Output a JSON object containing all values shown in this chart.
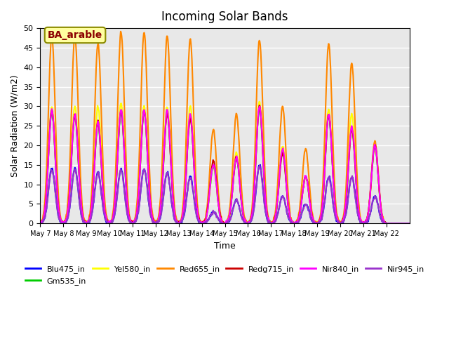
{
  "title": "Incoming Solar Bands",
  "xlabel": "Time",
  "ylabel": "Solar Radiation (W/m2)",
  "annotation_text": "BA_arable",
  "annotation_facecolor": "#FFFFA0",
  "annotation_edgecolor": "#8B8B00",
  "annotation_textcolor": "#8B0000",
  "background_color": "#E8E8E8",
  "ylim": [
    0,
    50
  ],
  "xtick_labels": [
    "May 7",
    "May 8",
    "May 9",
    "May 10",
    "May 11",
    "May 12",
    "May 13",
    "May 14",
    "May 15",
    "May 16",
    "May 17",
    "May 18",
    "May 19",
    "May 20",
    "May 21",
    "May 22"
  ],
  "series": [
    {
      "name": "Blu475_in",
      "color": "#0000FF",
      "lw": 1.5
    },
    {
      "name": "Gm535_in",
      "color": "#00CC00",
      "lw": 1.5
    },
    {
      "name": "Yel580_in",
      "color": "#FFFF00",
      "lw": 1.5
    },
    {
      "name": "Red655_in",
      "color": "#FF8800",
      "lw": 1.5
    },
    {
      "name": "Redg715_in",
      "color": "#CC0000",
      "lw": 1.5
    },
    {
      "name": "Nir840_in",
      "color": "#FF00FF",
      "lw": 1.5
    },
    {
      "name": "Nir945_in",
      "color": "#9933CC",
      "lw": 1.5
    }
  ],
  "peak_vals_orange": [
    48,
    48,
    46,
    49,
    49,
    48,
    47,
    24,
    28,
    47,
    30,
    19,
    46,
    41,
    21
  ],
  "peak_vals_blue": [
    14,
    14,
    13,
    14,
    14,
    13,
    12,
    3,
    6,
    15,
    7,
    5,
    12,
    12,
    7
  ],
  "peak_vals_magenta": [
    29,
    28,
    26,
    29,
    29,
    29,
    28,
    15,
    17,
    30,
    19,
    12,
    28,
    25,
    20
  ],
  "peak_vals_yellow": [
    30,
    30,
    30,
    31,
    30,
    30,
    30,
    15,
    18,
    31,
    20,
    12,
    29,
    28,
    20
  ],
  "peak_vals_red": [
    29,
    28,
    26,
    29,
    29,
    28,
    27,
    16,
    17,
    30,
    18,
    12,
    28,
    24,
    20
  ]
}
